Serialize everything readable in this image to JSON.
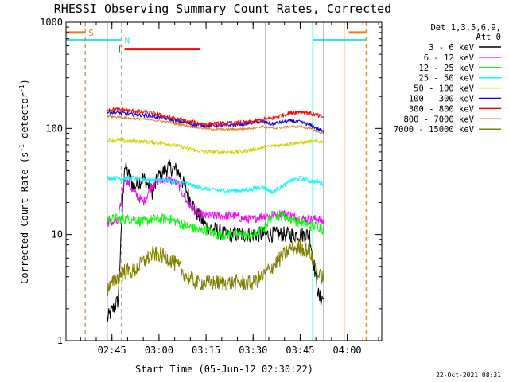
{
  "chart_data": {
    "type": "line",
    "title": "RHESSI Observing Summary Count Rates, Corrected",
    "xlabel": "Start Time (05-Jun-12 02:30:22)",
    "ylabel_main": "Corrected Count Rate (s",
    "ylabel_sup1": "-1",
    "ylabel_mid": " detector",
    "ylabel_sup2": "-1",
    "ylabel_end": ")",
    "yscale": "log",
    "ylim": [
      1,
      1000
    ],
    "xlim": [
      "02:30:22",
      "04:11:00"
    ],
    "x_ticks": [
      "02:45",
      "03:00",
      "03:15",
      "03:30",
      "03:45",
      "04:00"
    ],
    "y_ticks": [
      "1",
      "10",
      "100",
      "1000"
    ],
    "legend_header": [
      "Det 1,3,5,6,9,",
      "Att 0"
    ],
    "legend_position": "right",
    "footer_date": "22-Oct-2021 08:31",
    "flags": [
      {
        "label": "S",
        "color": "#e08020",
        "x_start": "02:30:22",
        "x_end": "02:36:30",
        "y": 800
      },
      {
        "label": "N",
        "color": "#40e0e0",
        "x_start": "02:30:22",
        "x_end": "02:48:00",
        "y": 680
      },
      {
        "label": "F",
        "color": "#ff0000",
        "x_start": "02:49:00",
        "x_end": "03:13:00",
        "y": 560
      },
      {
        "label": "",
        "color": "#e08020",
        "x_start": "04:00:30",
        "x_end": "04:06:00",
        "y": 800
      },
      {
        "label": "",
        "color": "#40e0e0",
        "x_start": "03:49:00",
        "x_end": "04:06:00",
        "y": 680
      }
    ],
    "vlines": [
      {
        "x": "02:36:30",
        "color": "#e08020",
        "style": "dashed"
      },
      {
        "x": "02:43:30",
        "color": "#e08020",
        "style": "solid"
      },
      {
        "x": "02:43:30",
        "color": "#40e0e0",
        "style": "solid"
      },
      {
        "x": "02:48:00",
        "color": "#40e0e0",
        "style": "dashed"
      },
      {
        "x": "03:34:00",
        "color": "#e08020",
        "style": "solid"
      },
      {
        "x": "03:49:00",
        "color": "#40e0e0",
        "style": "solid"
      },
      {
        "x": "03:52:30",
        "color": "#e08020",
        "style": "solid"
      },
      {
        "x": "03:59:00",
        "color": "#e08020",
        "style": "solid"
      },
      {
        "x": "04:06:00",
        "color": "#e08020",
        "style": "dashed"
      }
    ],
    "x": [
      "02:43:30",
      "02:47:00",
      "02:49:00",
      "02:52:00",
      "02:55:00",
      "02:58:00",
      "03:00:00",
      "03:03:00",
      "03:06:00",
      "03:09:00",
      "03:12:00",
      "03:15:00",
      "03:18:00",
      "03:21:00",
      "03:24:00",
      "03:27:00",
      "03:30:00",
      "03:33:00",
      "03:36:00",
      "03:39:00",
      "03:42:00",
      "03:45:00",
      "03:48:00",
      "03:51:00",
      "03:52:30"
    ],
    "series": [
      {
        "name": "3 - 6 keV",
        "color": "#000000",
        "noise": 0.22,
        "values": [
          1.6,
          2.4,
          45,
          28,
          34,
          25,
          36,
          43,
          40,
          25,
          16,
          12,
          11,
          10,
          10,
          10,
          10,
          10,
          10,
          10,
          10,
          10,
          10,
          2.5,
          2.5
        ]
      },
      {
        "name": "6 - 12 keV",
        "color": "#ff00ff",
        "noise": 0.12,
        "values": [
          13,
          13,
          35,
          25,
          20,
          30,
          32,
          33,
          30,
          20,
          16,
          15,
          15,
          15,
          15,
          14,
          14,
          15,
          15,
          16,
          15,
          14,
          14,
          14,
          13
        ]
      },
      {
        "name": "12 - 25 keV",
        "color": "#00ff00",
        "noise": 0.14,
        "values": [
          14,
          14,
          14,
          14,
          13,
          14,
          14,
          14,
          13,
          12,
          11,
          11,
          10,
          10,
          10,
          10,
          10,
          11,
          15,
          15,
          14,
          13,
          12,
          12,
          11
        ]
      },
      {
        "name": "25 - 50 keV",
        "color": "#00ffff",
        "noise": 0.06,
        "values": [
          34,
          34,
          34,
          34,
          33,
          33,
          33,
          32,
          31,
          30,
          28,
          27,
          26,
          26,
          26,
          26,
          27,
          28,
          25,
          28,
          32,
          34,
          32,
          31,
          30
        ]
      },
      {
        "name": "50 - 100 keV",
        "color": "#d0d000",
        "noise": 0.05,
        "values": [
          77,
          77,
          76,
          76,
          75,
          74,
          73,
          71,
          68,
          65,
          62,
          60,
          60,
          60,
          60,
          61,
          63,
          66,
          68,
          70,
          72,
          73,
          75,
          75,
          75
        ]
      },
      {
        "name": "100 - 300 keV",
        "color": "#0000ff",
        "noise": 0.05,
        "values": [
          142,
          140,
          138,
          135,
          133,
          130,
          127,
          122,
          117,
          112,
          108,
          106,
          106,
          107,
          108,
          110,
          113,
          116,
          110,
          115,
          118,
          115,
          108,
          98,
          92
        ]
      },
      {
        "name": "300 - 800 keV",
        "color": "#ff0000",
        "noise": 0.06,
        "values": [
          152,
          150,
          148,
          145,
          142,
          138,
          134,
          128,
          122,
          116,
          112,
          110,
          110,
          111,
          112,
          113,
          116,
          120,
          125,
          132,
          140,
          145,
          140,
          130,
          128
        ]
      },
      {
        "name": "800 - 7000 keV",
        "color": "#e08020",
        "noise": 0.03,
        "values": [
          130,
          128,
          126,
          124,
          122,
          120,
          118,
          114,
          110,
          106,
          102,
          100,
          98,
          98,
          98,
          99,
          101,
          104,
          100,
          102,
          104,
          104,
          100,
          92,
          90
        ]
      },
      {
        "name": "7000 - 15000 keV",
        "color": "#808000",
        "noise": 0.22,
        "values": [
          3,
          4,
          4.5,
          4.5,
          5.5,
          6.5,
          6.5,
          6,
          5,
          4,
          3.5,
          3.5,
          3.5,
          3.5,
          3.5,
          3.5,
          3.5,
          4,
          5,
          6,
          7.5,
          7.5,
          7,
          4,
          4
        ]
      }
    ]
  }
}
